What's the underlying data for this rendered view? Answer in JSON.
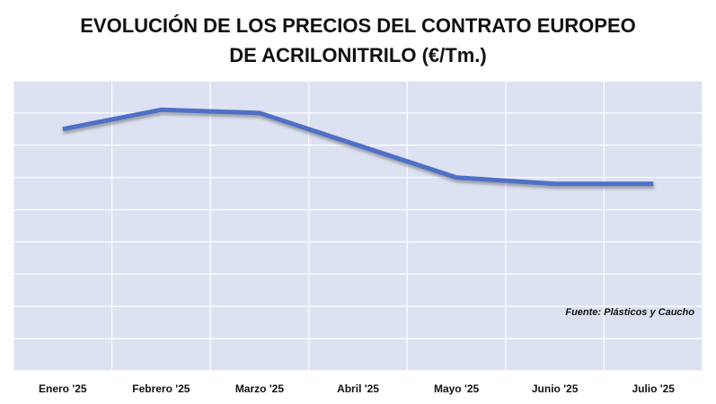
{
  "chart_data": {
    "type": "line",
    "title": "EVOLUCIÓN DE LOS PRECIOS DEL CONTRATO EUROPEO DE ACRILONITRILO (€/Tm.)",
    "categories": [
      "Enero '25",
      "Febrero '25",
      "Marzo '25",
      "Abril '25",
      "Mayo '25",
      "Junio '25",
      "Julio '25"
    ],
    "values": [
      7.5,
      8.1,
      8.0,
      7.0,
      6.0,
      5.8,
      5.8
    ],
    "color": "#4f6fc6",
    "ylim": [
      0,
      9
    ],
    "grid": true,
    "source": "Fuente: Plásticos y Caucho"
  }
}
